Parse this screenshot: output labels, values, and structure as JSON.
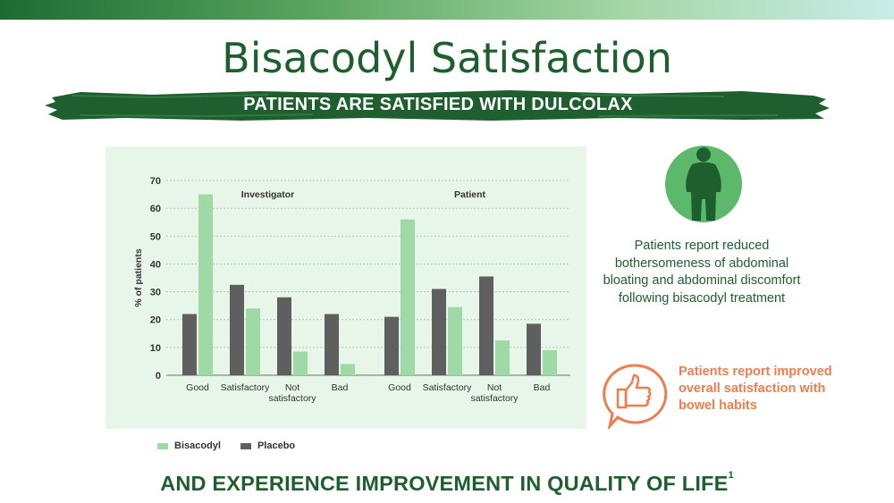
{
  "slide": {
    "title": "Bisacodyl Satisfaction",
    "subtitle": "PATIENTS ARE SATISFIED WITH DULCOLAX",
    "footer": "AND EXPERIENCE IMPROVEMENT IN QUALITY OF LIFE",
    "footer_ref": "1"
  },
  "info": {
    "bloating_text": "Patients report reduced bothersomeness of abdominal bloating and abdominal discomfort following bisacodyl treatment",
    "satisfaction_text": "Patients report improved overall satisfaction with bowel habits",
    "icons": [
      "person-icon",
      "thumbs-up-speech-icon"
    ]
  },
  "colors": {
    "bisacodyl": "#9fd9a5",
    "placebo": "#5f5f5f",
    "brand_green": "#1f5e2e",
    "accent_orange": "#ef7d4d",
    "panel": "#e8f5e9"
  },
  "chart_data": {
    "type": "bar",
    "ylabel": "% of patients",
    "ylim": [
      0,
      70
    ],
    "yticks": [
      0,
      10,
      20,
      30,
      40,
      50,
      60,
      70
    ],
    "legend": [
      "Bisacodyl",
      "Placebo"
    ],
    "legend_position": "bottom-left",
    "grid": true,
    "groups": [
      {
        "label": "Investigator",
        "categories": [
          "Good",
          "Satisfactory",
          "Not satisfactory",
          "Bad"
        ],
        "series": [
          {
            "name": "Placebo",
            "values": [
              22,
              32.5,
              28,
              22
            ]
          },
          {
            "name": "Bisacodyl",
            "values": [
              65,
              24,
              8.5,
              4
            ]
          }
        ]
      },
      {
        "label": "Patient",
        "categories": [
          "Good",
          "Satisfactory",
          "Not satisfactory",
          "Bad"
        ],
        "series": [
          {
            "name": "Placebo",
            "values": [
              21,
              31,
              35.5,
              18.5
            ]
          },
          {
            "name": "Bisacodyl",
            "values": [
              56,
              24.5,
              12.5,
              9
            ]
          }
        ]
      }
    ]
  }
}
